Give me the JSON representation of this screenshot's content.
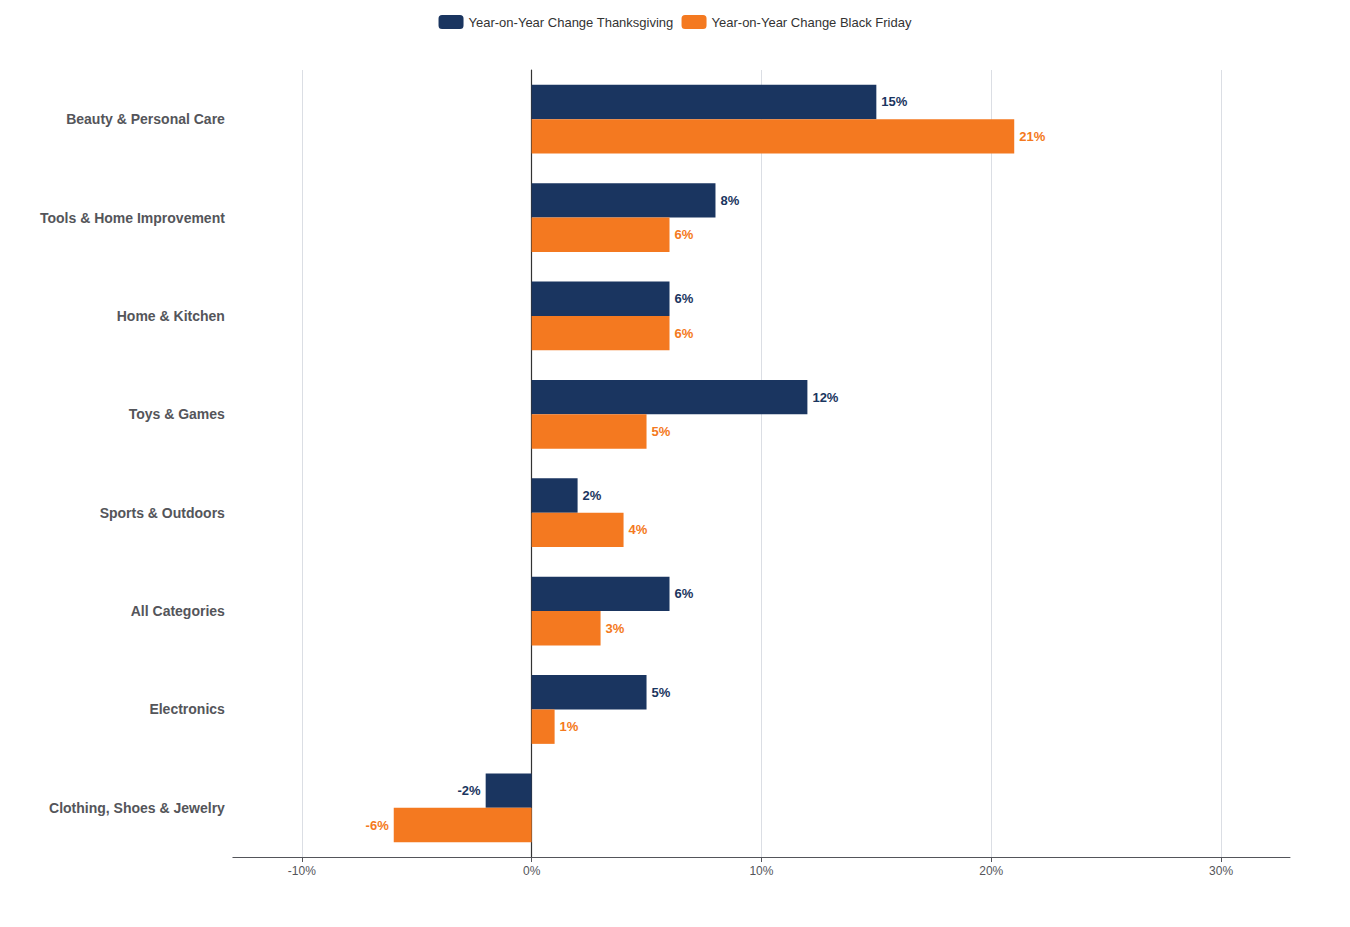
{
  "chart_data": {
    "type": "bar",
    "orientation": "horizontal",
    "categories": [
      "Beauty & Personal Care",
      "Tools & Home Improvement",
      "Home & Kitchen",
      "Toys & Games",
      "Sports & Outdoors",
      "All Categories",
      "Electronics",
      "Clothing, Shoes & Jewelry"
    ],
    "series": [
      {
        "name": "Year-on-Year Change Thanksgiving",
        "color": "#1a3560",
        "values": [
          15,
          8,
          6,
          12,
          2,
          6,
          5,
          -2
        ],
        "value_labels": [
          "15%",
          "8%",
          "6%",
          "12%",
          "2%",
          "6%",
          "5%",
          "-2%"
        ]
      },
      {
        "name": "Year-on-Year Change Black Friday",
        "color": "#f47920",
        "values": [
          21,
          6,
          6,
          5,
          4,
          3,
          1,
          -6
        ],
        "value_labels": [
          "21%",
          "6%",
          "6%",
          "5%",
          "4%",
          "3%",
          "1%",
          "-6%"
        ]
      }
    ],
    "xlim": [
      -13,
      33
    ],
    "xticks": [
      {
        "value": -10,
        "label": "-10%"
      },
      {
        "value": 0,
        "label": "0%"
      },
      {
        "value": 10,
        "label": "10%"
      },
      {
        "value": 20,
        "label": "20%"
      },
      {
        "value": 30,
        "label": "30%"
      }
    ],
    "grid": true,
    "legend": "top",
    "data_labels": true
  }
}
